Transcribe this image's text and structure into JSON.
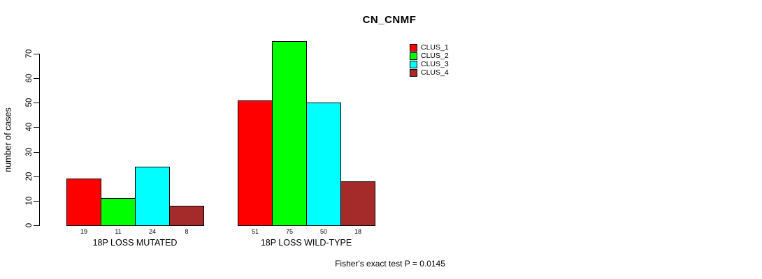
{
  "chart_data": {
    "type": "bar",
    "title": "CN_CNMF",
    "ylabel": "number of cases",
    "xlabel": "",
    "ylim": [
      0,
      70
    ],
    "yticks": [
      0,
      10,
      20,
      30,
      40,
      50,
      60,
      70
    ],
    "grid": false,
    "legend_position": "top-right",
    "categories": [
      "18P LOSS MUTATED",
      "18P LOSS WILD-TYPE"
    ],
    "series": [
      {
        "name": "CLUS_1",
        "color": "#FF0000",
        "values": [
          19,
          51
        ]
      },
      {
        "name": "CLUS_2",
        "color": "#00FF00",
        "values": [
          11,
          75
        ]
      },
      {
        "name": "CLUS_3",
        "color": "#00FFFF",
        "values": [
          24,
          50
        ]
      },
      {
        "name": "CLUS_4",
        "color": "#A52A2A",
        "values": [
          8,
          18
        ]
      }
    ],
    "bar_value_labels_shown": true,
    "annotation": "Fisher's exact test P = 0.0145"
  }
}
